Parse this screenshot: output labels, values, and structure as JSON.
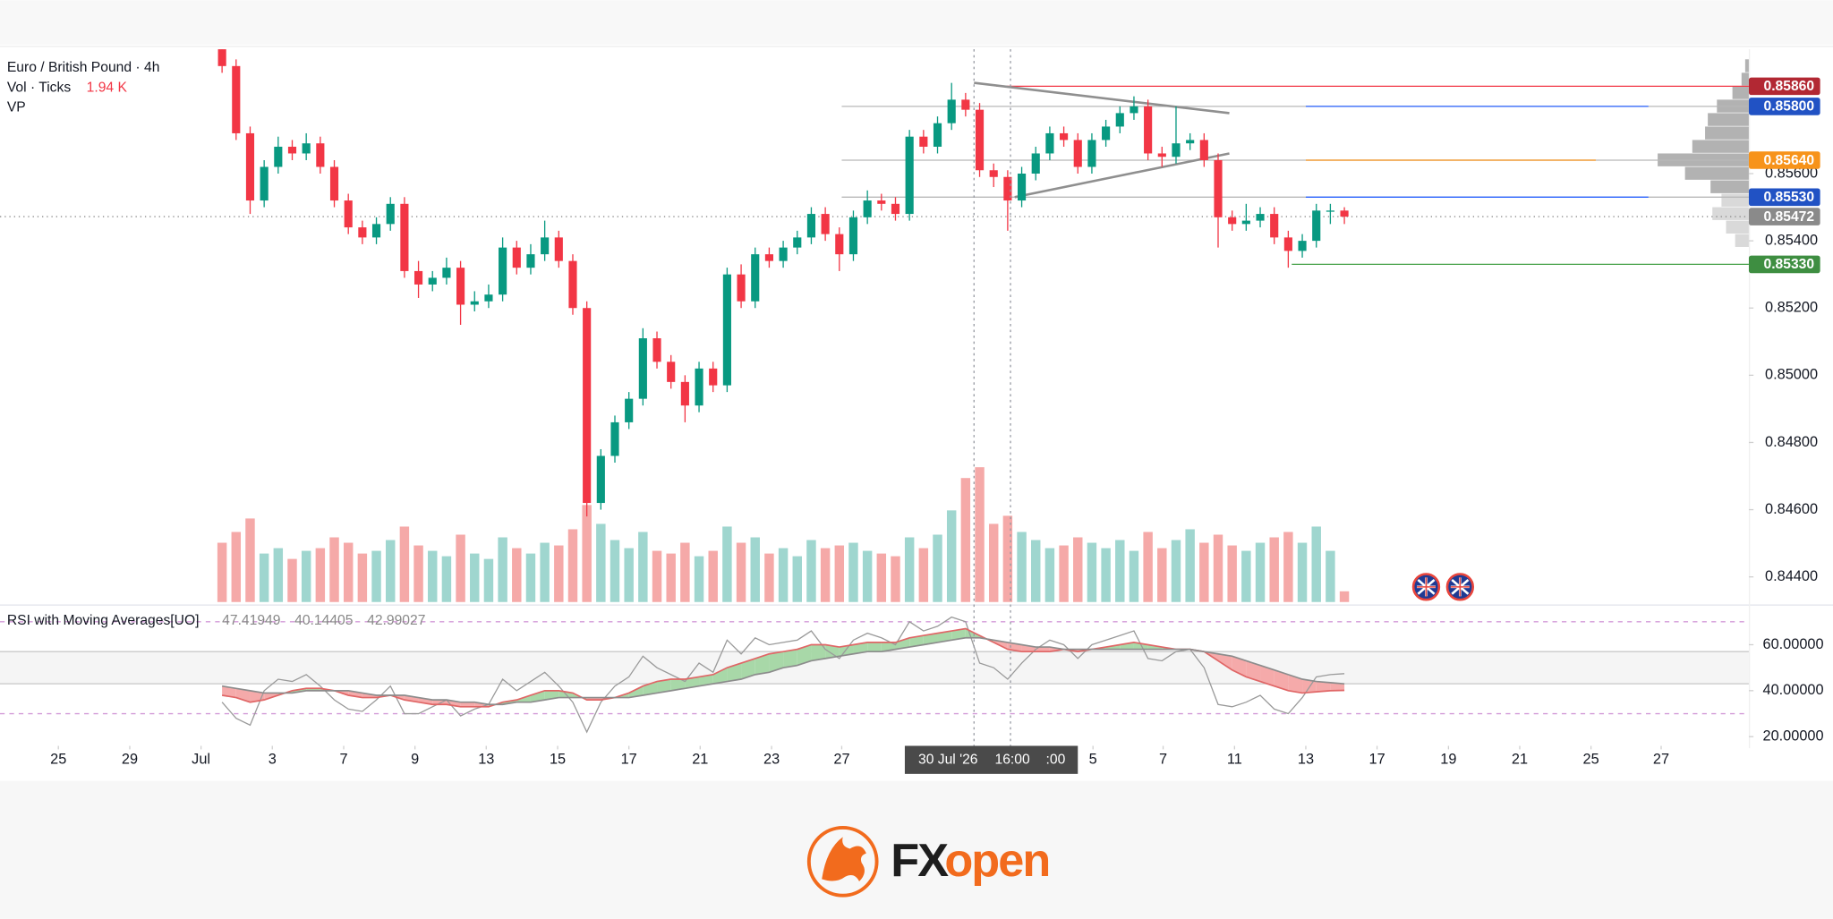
{
  "chart_data": [
    {
      "type": "candlestick",
      "title": "Euro / British Pound · 4h",
      "volume_title": "Vol · Ticks",
      "volume_label": "1.94 K",
      "profile_title": "VP",
      "up_color": "#089981",
      "down_color": "#f23645",
      "volume_up_color": "#9fd6cf",
      "volume_down_color": "#f5a9a8",
      "grid": false,
      "xlim": [
        -15.83,
        108.83
      ],
      "ylim": [
        0.84325,
        0.8597
      ],
      "volume_ylim": [
        0,
        5.2
      ],
      "xticks": [
        {
          "value": -11.67,
          "label": "25"
        },
        {
          "value": -6.58,
          "label": "29"
        },
        {
          "value": -1.5,
          "label": "Jul"
        },
        {
          "value": 3.58,
          "label": "3"
        },
        {
          "value": 8.67,
          "label": "7"
        },
        {
          "value": 13.75,
          "label": "9"
        },
        {
          "value": 18.83,
          "label": "13"
        },
        {
          "value": 23.92,
          "label": "15"
        },
        {
          "value": 29,
          "label": "17"
        },
        {
          "value": 34.08,
          "label": "21"
        },
        {
          "value": 39.17,
          "label": "23"
        },
        {
          "value": 44.17,
          "label": "27"
        },
        {
          "value": 62.08,
          "label": "5"
        },
        {
          "value": 67.08,
          "label": "7"
        },
        {
          "value": 72.17,
          "label": "11"
        },
        {
          "value": 77.25,
          "label": "13"
        },
        {
          "value": 82.33,
          "label": "17"
        },
        {
          "value": 87.42,
          "label": "19"
        },
        {
          "value": 92.5,
          "label": "21"
        },
        {
          "value": 97.58,
          "label": "25"
        },
        {
          "value": 102.58,
          "label": "27"
        }
      ],
      "yticks": [
        {
          "value": 0.856,
          "label": "0.85600"
        },
        {
          "value": 0.854,
          "label": "0.85400"
        },
        {
          "value": 0.852,
          "label": "0.85200"
        },
        {
          "value": 0.85,
          "label": "0.85000"
        },
        {
          "value": 0.848,
          "label": "0.84800"
        },
        {
          "value": 0.846,
          "label": "0.84600"
        },
        {
          "value": 0.844,
          "label": "0.84400"
        }
      ],
      "ohlc": [
        [
          0.8597,
          0.8599,
          0.859,
          0.8592
        ],
        [
          0.8592,
          0.8594,
          0.857,
          0.8572
        ],
        [
          0.8572,
          0.8574,
          0.8548,
          0.8552
        ],
        [
          0.8552,
          0.8564,
          0.855,
          0.8562
        ],
        [
          0.8562,
          0.8571,
          0.856,
          0.8568
        ],
        [
          0.8568,
          0.857,
          0.8564,
          0.8566
        ],
        [
          0.8566,
          0.8572,
          0.8564,
          0.8569
        ],
        [
          0.8569,
          0.8571,
          0.856,
          0.8562
        ],
        [
          0.8562,
          0.8564,
          0.855,
          0.8552
        ],
        [
          0.8552,
          0.8554,
          0.8542,
          0.8544
        ],
        [
          0.8544,
          0.8546,
          0.8539,
          0.8541
        ],
        [
          0.8541,
          0.8547,
          0.8539,
          0.8545
        ],
        [
          0.8545,
          0.8553,
          0.8543,
          0.8551
        ],
        [
          0.8551,
          0.8553,
          0.8529,
          0.8531
        ],
        [
          0.8531,
          0.8534,
          0.8523,
          0.8527
        ],
        [
          0.8527,
          0.8531,
          0.8525,
          0.8529
        ],
        [
          0.8529,
          0.8535,
          0.8527,
          0.8532
        ],
        [
          0.8532,
          0.8534,
          0.8515,
          0.8521
        ],
        [
          0.8521,
          0.8525,
          0.8519,
          0.8522
        ],
        [
          0.8522,
          0.8527,
          0.852,
          0.8524
        ],
        [
          0.8524,
          0.8541,
          0.8522,
          0.8538
        ],
        [
          0.8538,
          0.854,
          0.853,
          0.8532
        ],
        [
          0.8532,
          0.8539,
          0.853,
          0.8536
        ],
        [
          0.8536,
          0.8546,
          0.8534,
          0.8541
        ],
        [
          0.8541,
          0.8543,
          0.8532,
          0.8534
        ],
        [
          0.8534,
          0.8536,
          0.8518,
          0.852
        ],
        [
          0.852,
          0.8522,
          0.8458,
          0.8462
        ],
        [
          0.8462,
          0.8478,
          0.846,
          0.8476
        ],
        [
          0.8476,
          0.8488,
          0.8474,
          0.8486
        ],
        [
          0.8486,
          0.8495,
          0.8484,
          0.8493
        ],
        [
          0.8493,
          0.8514,
          0.8491,
          0.8511
        ],
        [
          0.8511,
          0.8513,
          0.8502,
          0.8504
        ],
        [
          0.8504,
          0.8506,
          0.8496,
          0.8498
        ],
        [
          0.8498,
          0.85,
          0.8486,
          0.8491
        ],
        [
          0.8491,
          0.8504,
          0.8489,
          0.8502
        ],
        [
          0.8502,
          0.8504,
          0.8495,
          0.8497
        ],
        [
          0.8497,
          0.8532,
          0.8495,
          0.853
        ],
        [
          0.853,
          0.8533,
          0.852,
          0.8522
        ],
        [
          0.8522,
          0.8538,
          0.852,
          0.8536
        ],
        [
          0.8536,
          0.8538,
          0.8532,
          0.8534
        ],
        [
          0.8534,
          0.854,
          0.8532,
          0.8538
        ],
        [
          0.8538,
          0.8543,
          0.8536,
          0.8541
        ],
        [
          0.8541,
          0.855,
          0.8539,
          0.8548
        ],
        [
          0.8548,
          0.855,
          0.854,
          0.8542
        ],
        [
          0.8542,
          0.8544,
          0.8531,
          0.8536
        ],
        [
          0.8536,
          0.8549,
          0.8534,
          0.8547
        ],
        [
          0.8547,
          0.8555,
          0.8545,
          0.8552
        ],
        [
          0.8552,
          0.8554,
          0.8549,
          0.8551
        ],
        [
          0.8551,
          0.8553,
          0.8546,
          0.8548
        ],
        [
          0.8548,
          0.8573,
          0.8546,
          0.8571
        ],
        [
          0.8571,
          0.8573,
          0.8566,
          0.8568
        ],
        [
          0.8568,
          0.8577,
          0.8566,
          0.8575
        ],
        [
          0.8575,
          0.8587,
          0.8573,
          0.8582
        ],
        [
          0.8582,
          0.8584,
          0.8577,
          0.8579
        ],
        [
          0.8579,
          0.8581,
          0.8559,
          0.8561
        ],
        [
          0.8561,
          0.8563,
          0.8556,
          0.8559
        ],
        [
          0.8559,
          0.8561,
          0.8543,
          0.8552
        ],
        [
          0.8552,
          0.8562,
          0.855,
          0.856
        ],
        [
          0.856,
          0.8568,
          0.8558,
          0.8566
        ],
        [
          0.8566,
          0.8574,
          0.8564,
          0.8572
        ],
        [
          0.8572,
          0.8574,
          0.8568,
          0.857
        ],
        [
          0.857,
          0.8572,
          0.856,
          0.8562
        ],
        [
          0.8562,
          0.8572,
          0.856,
          0.857
        ],
        [
          0.857,
          0.8576,
          0.8568,
          0.8574
        ],
        [
          0.8574,
          0.858,
          0.8572,
          0.8578
        ],
        [
          0.8578,
          0.8583,
          0.8576,
          0.858
        ],
        [
          0.858,
          0.8582,
          0.8564,
          0.8566
        ],
        [
          0.8566,
          0.8568,
          0.8562,
          0.8565
        ],
        [
          0.8565,
          0.858,
          0.8563,
          0.8569
        ],
        [
          0.8569,
          0.8572,
          0.8567,
          0.857
        ],
        [
          0.857,
          0.8572,
          0.8562,
          0.8564
        ],
        [
          0.8564,
          0.8566,
          0.8538,
          0.8547
        ],
        [
          0.8547,
          0.8549,
          0.8543,
          0.8545
        ],
        [
          0.8545,
          0.8551,
          0.8543,
          0.8546
        ],
        [
          0.8546,
          0.855,
          0.8544,
          0.8548
        ],
        [
          0.8548,
          0.855,
          0.8539,
          0.8541
        ],
        [
          0.8541,
          0.8543,
          0.8532,
          0.8537
        ],
        [
          0.8537,
          0.8542,
          0.8535,
          0.854
        ],
        [
          0.854,
          0.8551,
          0.8538,
          0.8549
        ],
        [
          0.8549,
          0.8551,
          0.8545,
          0.8549
        ],
        [
          0.8549,
          0.855,
          0.8545,
          0.85472
        ]
      ],
      "volume": [
        2.2,
        2.6,
        3.1,
        1.8,
        2.0,
        1.6,
        1.9,
        2.0,
        2.4,
        2.2,
        1.8,
        1.9,
        2.3,
        2.8,
        2.1,
        1.9,
        1.7,
        2.5,
        1.8,
        1.6,
        2.4,
        2.0,
        1.8,
        2.2,
        2.1,
        2.7,
        3.6,
        2.9,
        2.3,
        2.0,
        2.6,
        1.9,
        1.8,
        2.2,
        1.7,
        1.9,
        2.8,
        2.2,
        2.4,
        1.8,
        2.0,
        1.7,
        2.3,
        2.0,
        2.1,
        2.2,
        1.9,
        1.8,
        1.7,
        2.4,
        2.0,
        2.5,
        3.4,
        4.6,
        5.0,
        2.9,
        3.2,
        2.6,
        2.3,
        2.0,
        2.1,
        2.4,
        2.2,
        2.0,
        2.3,
        1.9,
        2.6,
        2.0,
        2.3,
        2.7,
        2.2,
        2.5,
        2.1,
        1.9,
        2.2,
        2.4,
        2.6,
        2.2,
        2.8,
        1.9,
        0.4
      ],
      "volume_profile": {
        "xlim": [
          0,
          100
        ],
        "prices": [
          0.8592,
          0.8588,
          0.8584,
          0.858,
          0.8576,
          0.8572,
          0.8568,
          0.8564,
          0.856,
          0.8556,
          0.8552,
          0.8548,
          0.8544,
          0.854
        ],
        "values": [
          4,
          8,
          18,
          35,
          45,
          48,
          62,
          100,
          70,
          42,
          30,
          40,
          25,
          15
        ],
        "colors": [
          "#b2b2b2",
          "#b2b2b2",
          "#b2b2b2",
          "#b2b2b2",
          "#b2b2b2",
          "#b2b2b2",
          "#b2b2b2",
          "#b2b2b2",
          "#b2b2b2",
          "#b2b2b2",
          "#d9d9d9",
          "#d9d9d9",
          "#d9d9d9",
          "#d9d9d9"
        ]
      },
      "price_lines": [
        {
          "value": 0.8586,
          "label": "0.85860",
          "label_color": "#b22833",
          "segments": [
            {
              "from": 55.2,
              "to": 108.83,
              "color": "#f23645"
            }
          ]
        },
        {
          "value": 0.858,
          "label": "0.85800",
          "label_color": "#2152c4",
          "segments": [
            {
              "from": 44.17,
              "to": 108.83,
              "color": "#b8b8b8"
            },
            {
              "from": 77.25,
              "to": 101.67,
              "color": "#2962ff"
            }
          ]
        },
        {
          "value": 0.8564,
          "label": "0.85640",
          "label_color": "#f7931a",
          "segments": [
            {
              "from": 44.17,
              "to": 108.83,
              "color": "#b8b8b8"
            },
            {
              "from": 77.25,
              "to": 97.92,
              "color": "#f7931a"
            }
          ]
        },
        {
          "value": 0.8553,
          "label": "0.85530",
          "label_color": "#2152c4",
          "segments": [
            {
              "from": 44.17,
              "to": 108.83,
              "color": "#b8b8b8"
            },
            {
              "from": 77.25,
              "to": 101.67,
              "color": "#2962ff"
            }
          ]
        },
        {
          "value": 0.8533,
          "label": "0.85330",
          "label_color": "#3e8e41",
          "segments": [
            {
              "from": 76.25,
              "to": 108.83,
              "color": "#43a047"
            }
          ]
        }
      ],
      "current_price": {
        "value": 0.85472,
        "label": "0.85472",
        "color": "#8a8a8a"
      },
      "trendlines": [
        {
          "from": [
            53.6,
            0.8587
          ],
          "to": [
            71.8,
            0.8578
          ]
        },
        {
          "from": [
            56.5,
            0.8553
          ],
          "to": [
            71.8,
            0.8566
          ]
        }
      ],
      "crosshair": {
        "x": [
          53.6,
          56.2
        ],
        "labels": [
          "30 Jul '26",
          "16:00",
          ":00"
        ]
      }
    },
    {
      "type": "line",
      "title": "RSI with Moving Averages[UO]",
      "ylim": [
        16,
        76
      ],
      "yticks": [
        {
          "value": 60,
          "label": "60.00000"
        },
        {
          "value": 40,
          "label": "40.00000"
        },
        {
          "value": 20,
          "label": "20.00000"
        }
      ],
      "levels": [
        70,
        30
      ],
      "band": [
        57,
        43
      ],
      "fill_up": "#a8d8a8",
      "fill_down": "#f5aaaa",
      "series": [
        {
          "color": "#9a9a9a",
          "values": [
            35,
            28,
            25,
            40,
            45,
            44,
            47,
            42,
            36,
            32,
            31,
            36,
            42,
            30,
            30,
            33,
            36,
            29,
            32,
            34,
            45,
            40,
            44,
            48,
            42,
            35,
            22,
            35,
            42,
            46,
            55,
            50,
            47,
            44,
            52,
            48,
            62,
            56,
            63,
            60,
            61,
            62,
            66,
            58,
            54,
            62,
            65,
            63,
            60,
            70,
            66,
            68,
            72,
            70,
            52,
            50,
            45,
            52,
            58,
            62,
            60,
            54,
            60,
            62,
            64,
            66,
            54,
            53,
            57,
            58,
            50,
            34,
            33,
            35,
            38,
            32,
            30,
            37,
            46,
            47,
            47.41949
          ]
        },
        {
          "color": "#e06666",
          "values": [
            38,
            37,
            35,
            36,
            38,
            40,
            41,
            41,
            40,
            38,
            37,
            37,
            38,
            36,
            35,
            34,
            34,
            33,
            33,
            33,
            35,
            36,
            38,
            40,
            40,
            39,
            36,
            36,
            37,
            39,
            42,
            44,
            45,
            45,
            46,
            47,
            50,
            52,
            54,
            56,
            57,
            58,
            60,
            60,
            59,
            60,
            61,
            61,
            61,
            63,
            64,
            65,
            66,
            67,
            64,
            61,
            58,
            57,
            57,
            57,
            58,
            57,
            58,
            59,
            60,
            61,
            60,
            59,
            58,
            58,
            57,
            53,
            49,
            46,
            44,
            42,
            40,
            39,
            39.5,
            40,
            40.14405
          ]
        },
        {
          "color": "#8c8c8c",
          "values": [
            42,
            41,
            40,
            39,
            39,
            39,
            40,
            40,
            40,
            40,
            39,
            38,
            38,
            38,
            37,
            36,
            36,
            35,
            35,
            34,
            34,
            35,
            35,
            36,
            37,
            37,
            37,
            37,
            37,
            37,
            38,
            39,
            40,
            41,
            42,
            43,
            44,
            45,
            47,
            48,
            50,
            51,
            53,
            54,
            55,
            56,
            57,
            57,
            58,
            59,
            60,
            61,
            62,
            63,
            63,
            62,
            61,
            60,
            59,
            59,
            58,
            58,
            58,
            58,
            58,
            58,
            58,
            58,
            58,
            58,
            57,
            56,
            55,
            53,
            51,
            49,
            47,
            45,
            44,
            43.5,
            42.99027
          ]
        }
      ]
    }
  ],
  "footer": {
    "logo_fx": "FX",
    "logo_open": "open"
  }
}
